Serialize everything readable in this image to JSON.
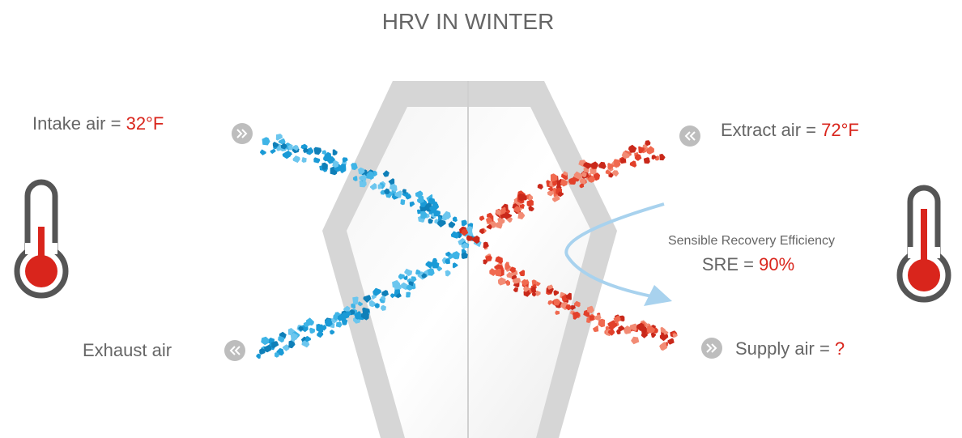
{
  "title": "HRV IN WINTER",
  "intake": {
    "label": "Intake air = ",
    "value": "32°F"
  },
  "extract": {
    "label": "Extract air = ",
    "value": "72°F"
  },
  "exhaust": {
    "label": "Exhaust air"
  },
  "supply": {
    "label": "Supply air = ",
    "value": "?"
  },
  "efficiency": {
    "caption": "Sensible Recovery Efficiency",
    "label": "SRE = ",
    "value": "90%"
  }
}
